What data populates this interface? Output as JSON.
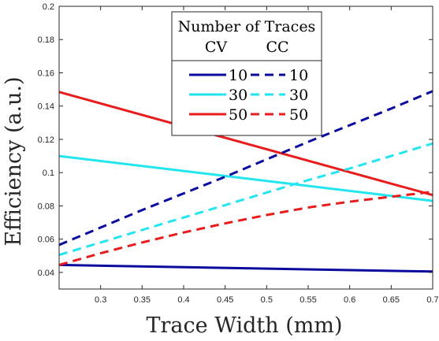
{
  "chart_data": {
    "type": "line",
    "xlabel": "Trace Width (mm)",
    "ylabel": "Efficiency (a.u.)",
    "xlim": [
      0.25,
      0.7
    ],
    "ylim": [
      0.03,
      0.2
    ],
    "xticks": [
      0.3,
      0.35,
      0.4,
      0.45,
      0.5,
      0.55,
      0.6,
      0.65,
      0.7
    ],
    "xtick_labels": [
      "0.3",
      "0.35",
      "0.4",
      "0.45",
      "0.5",
      "0.55",
      "0.6",
      "0.65",
      "0.7"
    ],
    "yticks": [
      0.04,
      0.06,
      0.08,
      0.1,
      0.12,
      0.14,
      0.16,
      0.18,
      0.2
    ],
    "ytick_labels": [
      "0.04",
      "0.06",
      "0.08",
      "0.1",
      "0.12",
      "0.14",
      "0.16",
      "0.18",
      "0.2"
    ],
    "grid": false,
    "legend": {
      "title": "Number of Traces",
      "col_headers": [
        "CV",
        "CC"
      ],
      "placement": "top-center",
      "rows": [
        {
          "cv_label": "10",
          "cc_label": "10"
        },
        {
          "cv_label": "30",
          "cc_label": "30"
        },
        {
          "cv_label": "50",
          "cc_label": "50"
        }
      ]
    },
    "series": [
      {
        "group": "CV",
        "count": "10",
        "color": "#0a0a9e",
        "dash": "solid",
        "x": [
          0.25,
          0.7
        ],
        "y": [
          0.0445,
          0.0405
        ]
      },
      {
        "group": "CV",
        "count": "30",
        "color": "#22e5f0",
        "dash": "solid",
        "x": [
          0.25,
          0.7
        ],
        "y": [
          0.11,
          0.083
        ]
      },
      {
        "group": "CV",
        "count": "50",
        "color": "#e81c1c",
        "dash": "solid",
        "x": [
          0.25,
          0.7
        ],
        "y": [
          0.1485,
          0.0865
        ]
      },
      {
        "group": "CC",
        "count": "10",
        "color": "#0a0a9e",
        "dash": "dashed",
        "x": [
          0.25,
          0.3,
          0.35,
          0.4,
          0.45,
          0.5,
          0.55,
          0.6,
          0.65,
          0.7
        ],
        "y": [
          0.0565,
          0.067,
          0.0775,
          0.0875,
          0.0975,
          0.108,
          0.1185,
          0.1285,
          0.1385,
          0.149
        ]
      },
      {
        "group": "CC",
        "count": "30",
        "color": "#22e5f0",
        "dash": "dashed",
        "x": [
          0.25,
          0.3,
          0.35,
          0.4,
          0.45,
          0.5,
          0.55,
          0.6,
          0.65,
          0.7
        ],
        "y": [
          0.0505,
          0.058,
          0.0655,
          0.073,
          0.0805,
          0.088,
          0.0955,
          0.1025,
          0.11,
          0.1175
        ]
      },
      {
        "group": "CC",
        "count": "50",
        "color": "#e81c1c",
        "dash": "dashed",
        "x": [
          0.25,
          0.3,
          0.35,
          0.4,
          0.45,
          0.5,
          0.55,
          0.6,
          0.65,
          0.7
        ],
        "y": [
          0.0445,
          0.0515,
          0.058,
          0.064,
          0.0695,
          0.0745,
          0.079,
          0.0825,
          0.0855,
          0.0885
        ]
      }
    ]
  }
}
